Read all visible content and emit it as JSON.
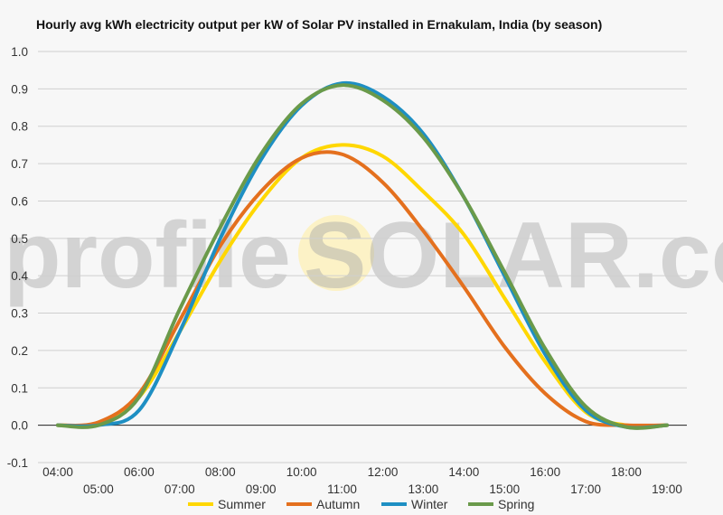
{
  "chart_data": {
    "type": "line",
    "title": "Hourly avg kWh electricity output per kW of Solar PV installed in Ernakulam, India (by season)",
    "xlabel": "",
    "ylabel": "",
    "x": [
      "04:00",
      "05:00",
      "06:00",
      "07:00",
      "08:00",
      "09:00",
      "10:00",
      "11:00",
      "12:00",
      "13:00",
      "14:00",
      "15:00",
      "16:00",
      "17:00",
      "18:00",
      "19:00"
    ],
    "xlim": [
      "04:00",
      "19:00"
    ],
    "ylim": [
      -0.1,
      1.0
    ],
    "yticks": [
      "1.0",
      "0.9",
      "0.8",
      "0.7",
      "0.6",
      "0.5",
      "0.4",
      "0.3",
      "0.2",
      "0.1",
      "0.0",
      "-0.1"
    ],
    "grid": true,
    "legend_position": "bottom",
    "watermark": {
      "left": "profile",
      "right": "SOLAR.com"
    },
    "series": [
      {
        "name": "Summer",
        "color": "#ffd700",
        "values": [
          0.0,
          0.005,
          0.075,
          0.25,
          0.44,
          0.6,
          0.715,
          0.75,
          0.72,
          0.625,
          0.51,
          0.34,
          0.17,
          0.035,
          0.0,
          0.0
        ]
      },
      {
        "name": "Autumn",
        "color": "#e4701e",
        "values": [
          0.0,
          0.008,
          0.085,
          0.28,
          0.48,
          0.625,
          0.715,
          0.725,
          0.65,
          0.52,
          0.37,
          0.21,
          0.085,
          0.01,
          0.0,
          0.0
        ]
      },
      {
        "name": "Winter",
        "color": "#1e8fc3",
        "values": [
          0.0,
          0.0,
          0.04,
          0.25,
          0.5,
          0.71,
          0.855,
          0.915,
          0.88,
          0.78,
          0.61,
          0.4,
          0.19,
          0.04,
          -0.005,
          0.0
        ]
      },
      {
        "name": "Spring",
        "color": "#6a9a4a",
        "values": [
          0.0,
          0.0,
          0.075,
          0.31,
          0.53,
          0.725,
          0.86,
          0.91,
          0.87,
          0.77,
          0.61,
          0.41,
          0.205,
          0.05,
          -0.005,
          0.0
        ]
      }
    ]
  }
}
